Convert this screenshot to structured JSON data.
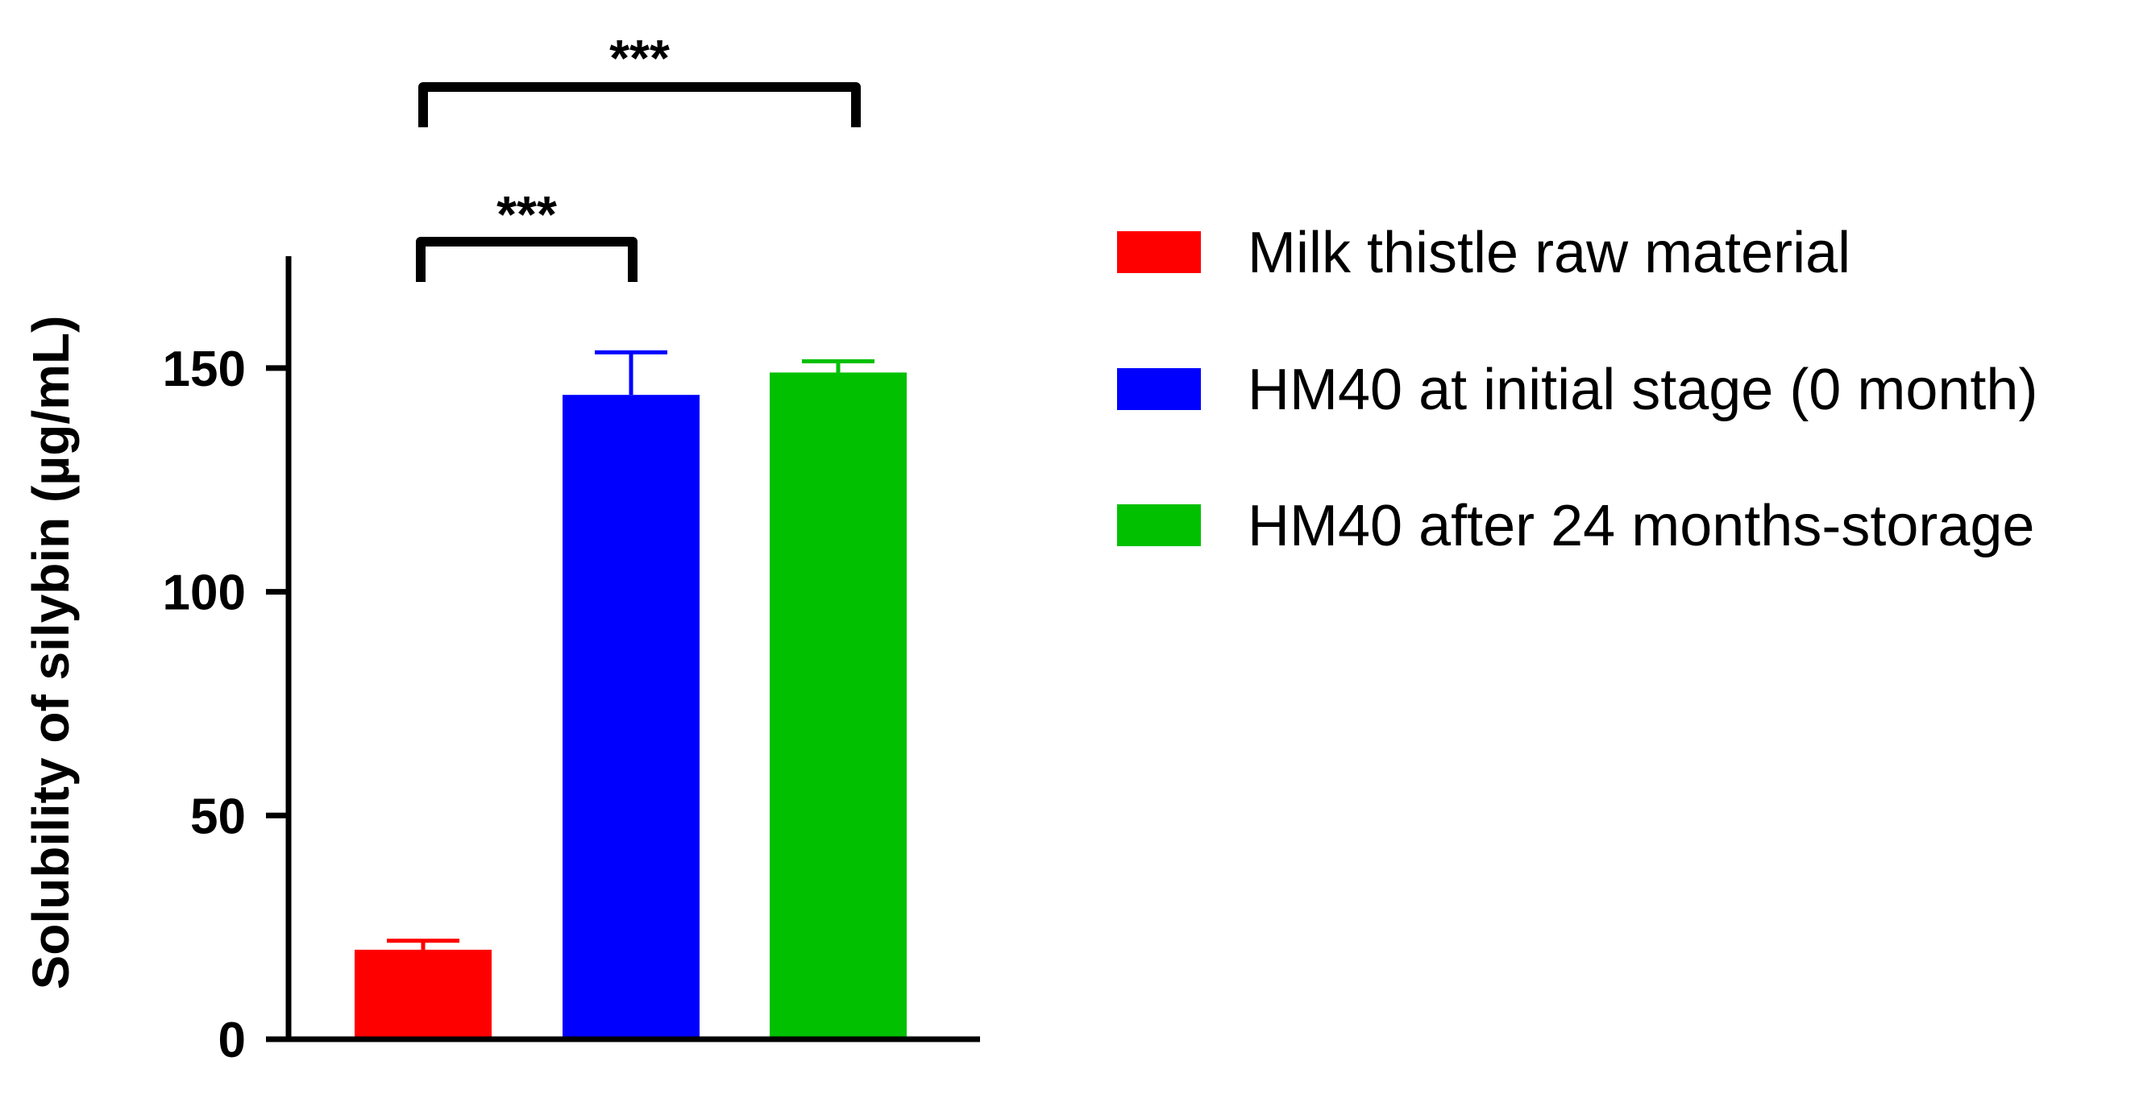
{
  "chart_data": {
    "type": "bar",
    "title": "",
    "xlabel": "",
    "ylabel": "Solubility of silybin (µg/mL)",
    "ylim": [
      0,
      175
    ],
    "yticks": [
      0,
      50,
      100,
      150
    ],
    "grid": false,
    "legend_position": "right",
    "series": [
      {
        "name": "Milk thistle raw material",
        "value": 20,
        "error": 2,
        "color": "#ff0000"
      },
      {
        "name": "HM40 at initial stage (0 month)",
        "value": 144,
        "error": 9.5,
        "color": "#0000ff"
      },
      {
        "name": "HM40 after 24 months-storage",
        "value": 149,
        "error": 2.5,
        "color": "#00c000"
      }
    ],
    "significance": [
      {
        "from": 0,
        "to": 1,
        "label": "***"
      },
      {
        "from": 0,
        "to": 2,
        "label": "***"
      }
    ]
  }
}
